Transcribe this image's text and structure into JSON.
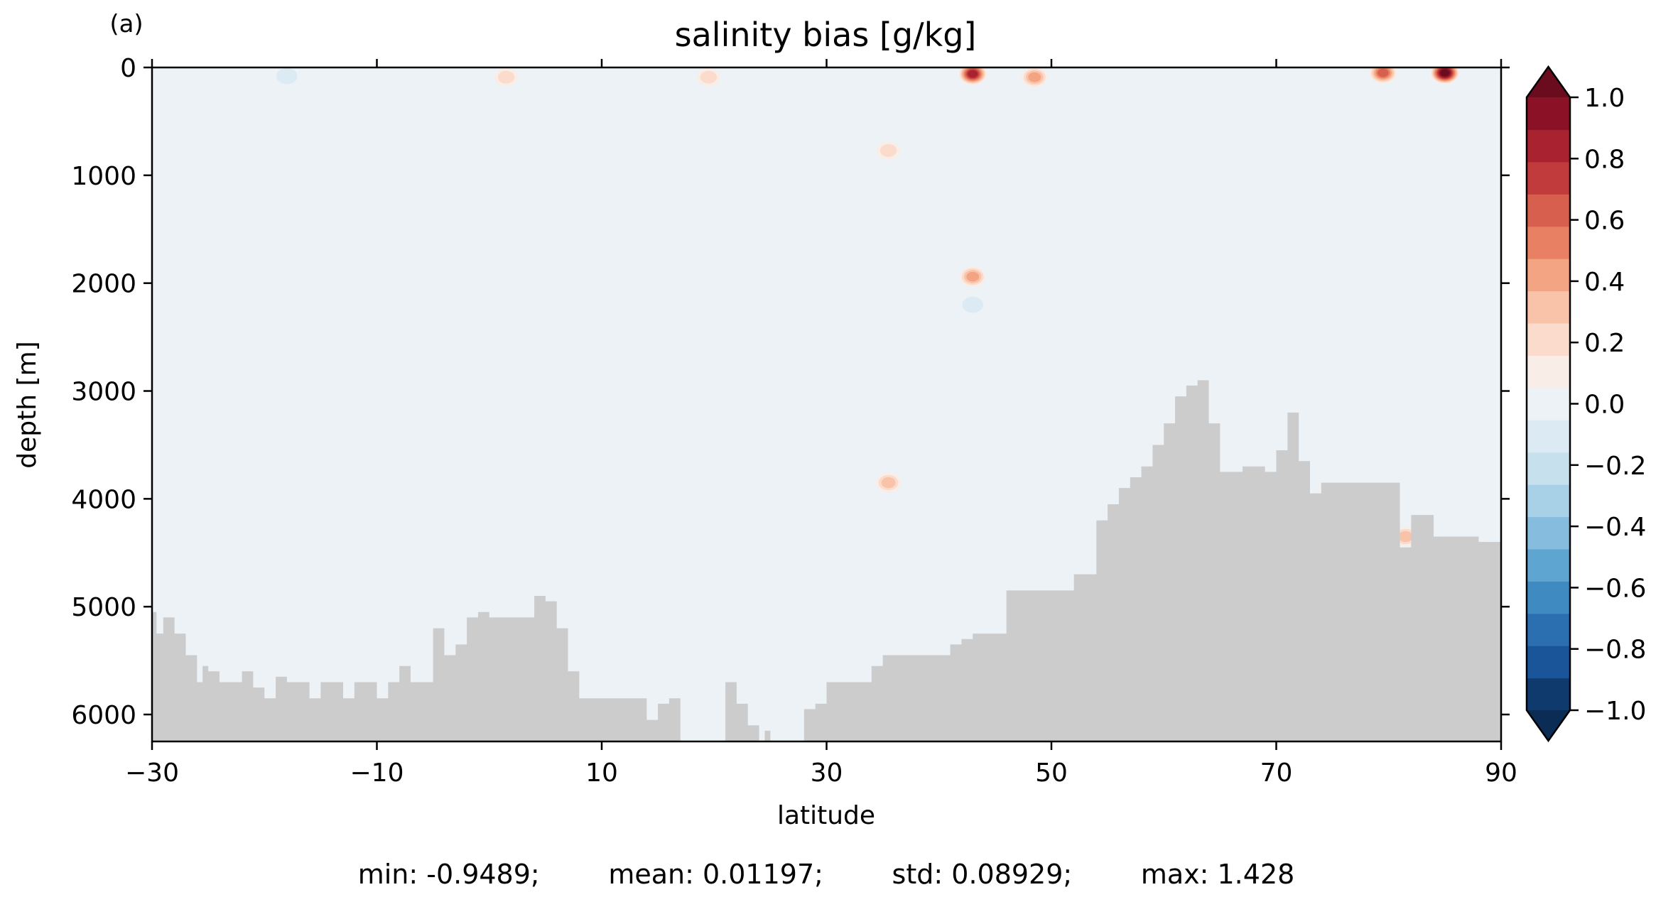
{
  "chart_data": {
    "type": "heatmap",
    "panel_label": "(a)",
    "title": "salinity bias [g/kg]",
    "xlabel": "latitude",
    "ylabel": "depth [m]",
    "xlim": [
      -30,
      90
    ],
    "ylim": [
      6250,
      0
    ],
    "y_inverted": true,
    "x_ticks": [
      -30,
      -10,
      10,
      30,
      50,
      70,
      90
    ],
    "x_tick_labels": [
      "−30",
      "−10",
      "10",
      "30",
      "50",
      "70",
      "90"
    ],
    "y_ticks": [
      0,
      1000,
      2000,
      3000,
      4000,
      5000,
      6000
    ],
    "y_tick_labels": [
      "0",
      "1000",
      "2000",
      "3000",
      "4000",
      "5000",
      "6000"
    ],
    "colorbar": {
      "cmap": "RdBu_r",
      "range": [
        -1.0,
        1.0
      ],
      "extend": "both",
      "levels": [
        -1.0,
        -0.9,
        -0.8,
        -0.7,
        -0.6,
        -0.5,
        -0.4,
        -0.3,
        -0.2,
        -0.1,
        0.0,
        0.1,
        0.2,
        0.3,
        0.4,
        0.5,
        0.6,
        0.7,
        0.8,
        0.9,
        1.0
      ],
      "tick_values": [
        1.0,
        0.8,
        0.6,
        0.4,
        0.2,
        0.0,
        -0.2,
        -0.4,
        -0.6,
        -0.8,
        -1.0
      ],
      "tick_labels": [
        "1.0",
        "0.8",
        "0.6",
        "0.4",
        "0.2",
        "0.0",
        "−0.2",
        "−0.4",
        "−0.6",
        "−0.8",
        "−1.0"
      ],
      "colors": [
        "#0f3a6e",
        "#1a5599",
        "#2b6fb0",
        "#3f8bc1",
        "#5fa5d1",
        "#86bcdd",
        "#a8d0e6",
        "#c6e0ee",
        "#dcebf3",
        "#ecf2f6",
        "#f9ede8",
        "#fbdccc",
        "#f8c3a8",
        "#f3a483",
        "#e88163",
        "#d65f4d",
        "#c13b3c",
        "#a8222f",
        "#8a1126"
      ],
      "under_color": "#0b2c55",
      "over_color": "#6b0c1e"
    },
    "background_color": "#ecf2f6",
    "land_color": "#cccccc",
    "bathymetry": {
      "lat": [
        -30,
        -29.6,
        -29,
        -28,
        -27,
        -26,
        -25.5,
        -25,
        -24,
        -23,
        -22,
        -21,
        -20,
        -19,
        -18,
        -17,
        -16,
        -15,
        -14,
        -13,
        -12,
        -11,
        -10,
        -9,
        -8,
        -7,
        -6,
        -5,
        -4,
        -3,
        -2,
        -1,
        0,
        1,
        2,
        3,
        4,
        5,
        6,
        7,
        8,
        9,
        10,
        11,
        12,
        13,
        14,
        15,
        16,
        17,
        17.5,
        18,
        19,
        20,
        21,
        22,
        23,
        24,
        24.5,
        25,
        25.5,
        26,
        26.5,
        27,
        28,
        29,
        30,
        31,
        32,
        33,
        34,
        35,
        36,
        37,
        38,
        39,
        40,
        41,
        42,
        43,
        44,
        45,
        46,
        47,
        48,
        49,
        50,
        51,
        52,
        53,
        54,
        55,
        56,
        57,
        58,
        59,
        60,
        61,
        62,
        63,
        64,
        65,
        66,
        67,
        68,
        69,
        70,
        71,
        72,
        73,
        74,
        75,
        76,
        77,
        78,
        79,
        80,
        80.5,
        81,
        82,
        83,
        84,
        85,
        86,
        87,
        88,
        89,
        90
      ],
      "depth": [
        5050,
        5250,
        5100,
        5250,
        5450,
        5700,
        5550,
        5600,
        5700,
        5700,
        5600,
        5750,
        5850,
        5650,
        5700,
        5700,
        5850,
        5700,
        5700,
        5850,
        5700,
        5700,
        5850,
        5700,
        5550,
        5700,
        5700,
        5200,
        5450,
        5350,
        5100,
        5050,
        5100,
        5100,
        5100,
        5100,
        4900,
        4950,
        5200,
        5600,
        5850,
        5850,
        5850,
        5850,
        5850,
        5850,
        6050,
        5900,
        5850,
        6250,
        6250,
        6250,
        6250,
        6250,
        5700,
        5900,
        6100,
        6250,
        6150,
        6250,
        6250,
        6250,
        6250,
        6250,
        5950,
        5900,
        5700,
        5700,
        5700,
        5700,
        5550,
        5450,
        5450,
        5450,
        5450,
        5450,
        5450,
        5350,
        5300,
        5250,
        5250,
        5250,
        4850,
        4850,
        4850,
        4850,
        4850,
        4850,
        4700,
        4700,
        4200,
        4050,
        3900,
        3800,
        3700,
        3500,
        3300,
        3050,
        2950,
        2900,
        3300,
        3750,
        3750,
        3700,
        3700,
        3750,
        3550,
        3200,
        3650,
        3950,
        3850,
        3850,
        3850,
        3850,
        3850,
        3850,
        3850,
        3850,
        4450,
        4150,
        4150,
        4350,
        4350,
        4350,
        4350,
        4400,
        4400,
        4300,
        4300
      ]
    },
    "anomalies": [
      {
        "lat": 43.0,
        "depth": 1940,
        "value": 0.45
      },
      {
        "lat": 43.0,
        "depth": 60,
        "value": 0.9
      },
      {
        "lat": 48.5,
        "depth": 90,
        "value": 0.45
      },
      {
        "lat": 85.0,
        "depth": 50,
        "value": 1.1
      },
      {
        "lat": 79.5,
        "depth": 50,
        "value": 0.65
      },
      {
        "lat": 35.5,
        "depth": 3850,
        "value": 0.35
      },
      {
        "lat": 35.5,
        "depth": 770,
        "value": 0.3
      },
      {
        "lat": 81.5,
        "depth": 4350,
        "value": 0.35
      },
      {
        "lat": 19.5,
        "depth": 90,
        "value": 0.25
      },
      {
        "lat": 1.5,
        "depth": 90,
        "value": 0.25
      },
      {
        "lat": -18.0,
        "depth": 80,
        "value": -0.15
      },
      {
        "lat": 43.0,
        "depth": 2200,
        "value": -0.2
      }
    ],
    "stats_line": "min: -0.9489;        mean: 0.01197;        std: 0.08929;        max: 1.428"
  }
}
